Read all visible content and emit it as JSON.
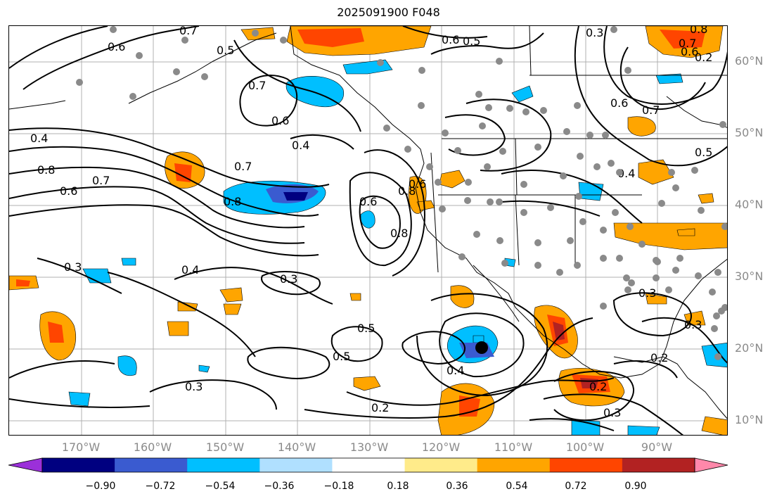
{
  "title": "2025091900 F048",
  "lat_labels": [
    "60°N",
    "50°N",
    "40°N",
    "30°N",
    "20°N",
    "10°N"
  ],
  "lon_labels": [
    "170°W",
    "160°W",
    "150°W",
    "140°W",
    "130°W",
    "120°W",
    "110°W",
    "100°W",
    "90°W"
  ],
  "colorbar": {
    "ticks": [
      "−0.90",
      "−0.72",
      "−0.54",
      "−0.36",
      "−0.18",
      "0.18",
      "0.36",
      "0.54",
      "0.72",
      "0.90"
    ],
    "colors": [
      "#9b30d9",
      "#000080",
      "#3a5bd0",
      "#00bfff",
      "#b0e0ff",
      "#ffffff",
      "#ffeb8a",
      "#ffa500",
      "#ff4500",
      "#b22222",
      "#ff88aa"
    ]
  },
  "contour_labels": [
    "0.6",
    "0.7",
    "0.5",
    "0.6",
    "0.5",
    "0.3",
    "0.8",
    "0.7",
    "0.6",
    "0.7",
    "0.6",
    "0.4",
    "0.4",
    "0.8",
    "0.7",
    "0.6",
    "0.7",
    "0.8",
    "0.6",
    "0.8",
    "0.8",
    "0.6",
    "0.4",
    "0.3",
    "0.3",
    "0.5",
    "0.5",
    "0.4",
    "0.3",
    "0.2",
    "0.2",
    "0.2",
    "0.3",
    "0.6",
    "0.7",
    "0.5",
    "0.4",
    "0.3",
    "0.3",
    "0.2"
  ]
}
